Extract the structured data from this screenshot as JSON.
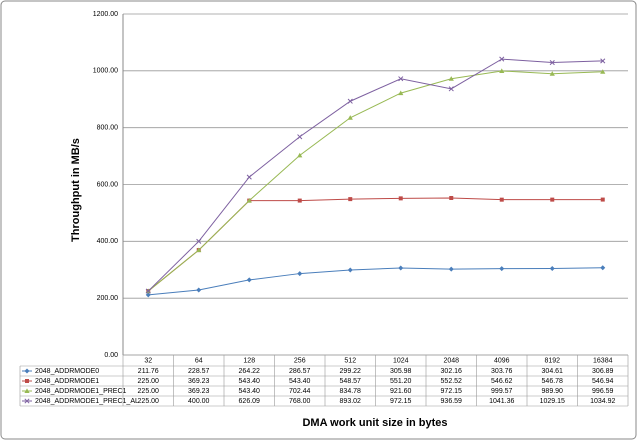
{
  "chart_data": {
    "type": "line",
    "x_label": "DMA work unit size in  bytes",
    "y_label": "Throughput in MB/s",
    "categories": [
      "32",
      "64",
      "128",
      "256",
      "512",
      "1024",
      "2048",
      "4096",
      "8192",
      "16384"
    ],
    "ylim": [
      0,
      1200
    ],
    "yticks": [
      {
        "value": 0,
        "label": "0.00"
      },
      {
        "value": 200,
        "label": "200.00"
      },
      {
        "value": 400,
        "label": "400.00"
      },
      {
        "value": 600,
        "label": "600.00"
      },
      {
        "value": 800,
        "label": "800.00"
      },
      {
        "value": 1000,
        "label": "1000.00"
      },
      {
        "value": 1200,
        "label": "1200.00"
      }
    ],
    "grid": true,
    "series": [
      {
        "name": "2048_ADDRMODE0",
        "color": "#4a7ebb",
        "marker": "diamond",
        "values": [
          211.76,
          228.57,
          264.22,
          286.57,
          299.22,
          305.98,
          302.16,
          303.76,
          304.61,
          306.89
        ],
        "value_labels": [
          "211.76",
          "228.57",
          "264.22",
          "286.57",
          "299.22",
          "305.98",
          "302.16",
          "303.76",
          "304.61",
          "306.89"
        ]
      },
      {
        "name": "2048_ADDRMODE1",
        "color": "#be4b48",
        "marker": "square",
        "values": [
          225,
          369.23,
          543.4,
          543.4,
          548.57,
          551.2,
          552.52,
          546.62,
          546.78,
          546.94
        ],
        "value_labels": [
          "225.00",
          "369.23",
          "543.40",
          "543.40",
          "548.57",
          "551.20",
          "552.52",
          "546.62",
          "546.78",
          "546.94"
        ]
      },
      {
        "name": "2048_ADDRMODE1_PREC1",
        "color": "#98b954",
        "marker": "triangle",
        "values": [
          225,
          369.23,
          543.4,
          702.44,
          834.78,
          921.6,
          972.15,
          999.57,
          989.9,
          996.59
        ],
        "value_labels": [
          "225.00",
          "369.23",
          "543.40",
          "702.44",
          "834.78",
          "921.60",
          "972.15",
          "999.57",
          "989.90",
          "996.59"
        ]
      },
      {
        "name": "2048_ADDRMODE1_PREC1_AL",
        "color": "#7d60a0",
        "marker": "x",
        "values": [
          225,
          400,
          626.09,
          768,
          893.02,
          972.15,
          936.59,
          1041.36,
          1029.15,
          1034.92
        ],
        "value_labels": [
          "225.00",
          "400.00",
          "626.09",
          "768.00",
          "893.02",
          "972.15",
          "936.59",
          "1041.36",
          "1029.15",
          "1034.92"
        ]
      }
    ]
  }
}
